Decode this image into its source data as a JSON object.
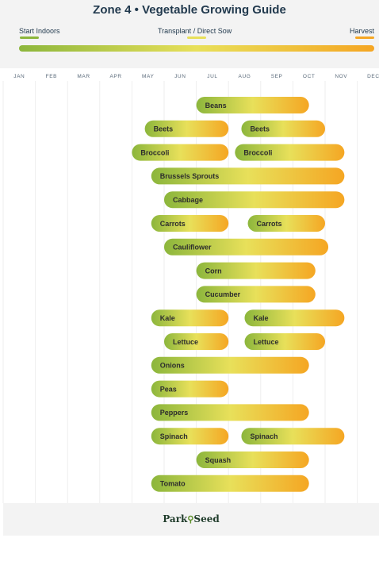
{
  "header": {
    "title": "Zone 4  •  Vegetable Growing Guide",
    "legend": [
      {
        "label": "Start Indoors",
        "color": "#8cb63c"
      },
      {
        "label": "Transplant / Direct Sow",
        "color": "#e8e05a"
      },
      {
        "label": "Harvest",
        "color": "#f5a623"
      }
    ]
  },
  "footer": {
    "brand_left": "Park",
    "brand_right": "Seed"
  },
  "chart_data": {
    "type": "gantt",
    "title": "Zone 4  •  Vegetable Growing Guide",
    "x_axis": {
      "categories": [
        "JAN",
        "FEB",
        "MAR",
        "APR",
        "MAY",
        "JUN",
        "JUL",
        "AUG",
        "SEP",
        "OCT",
        "NOV",
        "DEC"
      ],
      "unit": "month"
    },
    "colors": {
      "start_indoors": "#8cb63c",
      "transplant": "#e8e05a",
      "harvest": "#f5a623"
    },
    "series": [
      {
        "name": "Start Indoors",
        "color": "#8cb63c"
      },
      {
        "name": "Transplant / Direct Sow",
        "color": "#e8e05a"
      },
      {
        "name": "Harvest",
        "color": "#f5a623"
      }
    ],
    "rows": [
      {
        "crop": "Beans",
        "bars": [
          [
            6.0,
            9.5
          ]
        ]
      },
      {
        "crop": "Beets",
        "bars": [
          [
            4.4,
            7.0
          ],
          [
            7.4,
            10.0
          ]
        ]
      },
      {
        "crop": "Broccoli",
        "bars": [
          [
            4.0,
            7.0
          ],
          [
            7.2,
            10.6
          ]
        ]
      },
      {
        "crop": "Brussels Sprouts",
        "bars": [
          [
            4.6,
            10.6
          ]
        ]
      },
      {
        "crop": "Cabbage",
        "bars": [
          [
            5.0,
            10.6
          ]
        ]
      },
      {
        "crop": "Carrots",
        "bars": [
          [
            4.6,
            7.0
          ],
          [
            7.6,
            10.0
          ]
        ]
      },
      {
        "crop": "Cauliflower",
        "bars": [
          [
            5.0,
            10.1
          ]
        ]
      },
      {
        "crop": "Corn",
        "bars": [
          [
            6.0,
            9.7
          ]
        ]
      },
      {
        "crop": "Cucumber",
        "bars": [
          [
            6.0,
            9.7
          ]
        ]
      },
      {
        "crop": "Kale",
        "bars": [
          [
            4.6,
            7.0
          ],
          [
            7.5,
            10.6
          ]
        ]
      },
      {
        "crop": "Lettuce",
        "bars": [
          [
            5.0,
            7.0
          ],
          [
            7.5,
            10.0
          ]
        ]
      },
      {
        "crop": "Onions",
        "bars": [
          [
            4.6,
            9.5
          ]
        ]
      },
      {
        "crop": "Peas",
        "bars": [
          [
            4.6,
            7.0
          ]
        ]
      },
      {
        "crop": "Peppers",
        "bars": [
          [
            4.6,
            9.5
          ]
        ]
      },
      {
        "crop": "Spinach",
        "bars": [
          [
            4.6,
            7.0
          ],
          [
            7.4,
            10.6
          ]
        ]
      },
      {
        "crop": "Squash",
        "bars": [
          [
            6.0,
            9.5
          ]
        ]
      },
      {
        "crop": "Tomato",
        "bars": [
          [
            4.6,
            9.5
          ]
        ]
      }
    ]
  }
}
